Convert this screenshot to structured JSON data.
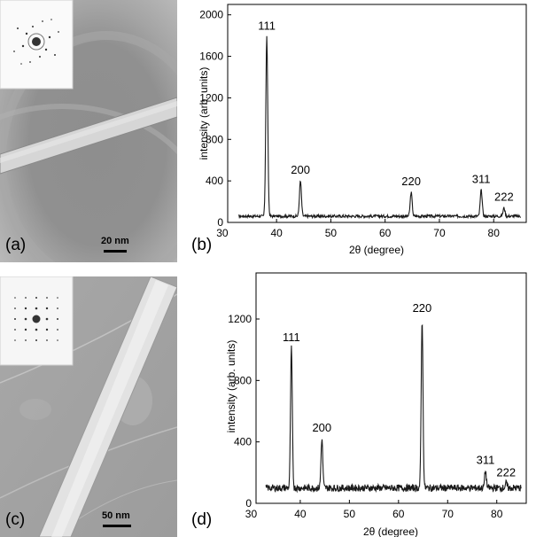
{
  "panels": {
    "a": {
      "label": "(a)",
      "scale_bar": "20 nm"
    },
    "b": {
      "label": "(b)"
    },
    "c": {
      "label": "(c)",
      "scale_bar": "50 nm"
    },
    "d": {
      "label": "(d)"
    }
  },
  "colors": {
    "line": "#1a1a1a",
    "axis": "#000000",
    "tem_background": "#9a9a9a"
  },
  "chart_data": [
    {
      "type": "line",
      "panel": "b",
      "xlabel": "2θ (degree)",
      "ylabel": "intensity (arb. units)",
      "xlim": [
        31,
        86
      ],
      "ylim": [
        0,
        2100
      ],
      "xticks": [
        30,
        40,
        50,
        60,
        70,
        80
      ],
      "yticks": [
        0,
        400,
        800,
        1200,
        1600,
        2000
      ],
      "baseline": 60,
      "x_range": [
        33,
        85
      ],
      "peaks": [
        {
          "label": "111",
          "x": 38.2,
          "y": 1790
        },
        {
          "label": "200",
          "x": 44.4,
          "y": 400
        },
        {
          "label": "220",
          "x": 64.8,
          "y": 290
        },
        {
          "label": "311",
          "x": 77.7,
          "y": 310
        },
        {
          "label": "222",
          "x": 81.9,
          "y": 140
        }
      ]
    },
    {
      "type": "line",
      "panel": "d",
      "xlabel": "2θ (degree)",
      "ylabel": "intensity (arb. units)",
      "xlim": [
        31,
        86
      ],
      "ylim": [
        0,
        1500
      ],
      "xticks": [
        30,
        40,
        50,
        60,
        70,
        80
      ],
      "yticks": [
        0,
        400,
        800,
        1200
      ],
      "baseline": 100,
      "x_range": [
        33,
        85
      ],
      "peaks": [
        {
          "label": "111",
          "x": 38.2,
          "y": 1010
        },
        {
          "label": "200",
          "x": 44.4,
          "y": 420
        },
        {
          "label": "220",
          "x": 64.8,
          "y": 1200
        },
        {
          "label": "311",
          "x": 77.7,
          "y": 210
        },
        {
          "label": "222",
          "x": 81.9,
          "y": 130
        }
      ]
    }
  ]
}
